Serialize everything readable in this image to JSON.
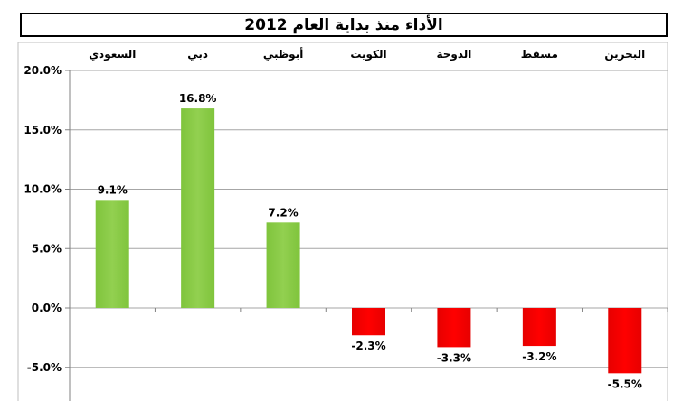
{
  "chart_data": {
    "type": "bar",
    "title": "الأداء منذ بداية العام 2012",
    "categories": [
      "السعودي",
      "دبي",
      "أبوظبي",
      "الكويت",
      "الدوحة",
      "مسقط",
      "البحرين"
    ],
    "values": [
      9.1,
      16.8,
      7.2,
      -2.3,
      -3.3,
      -3.2,
      -5.5
    ],
    "data_labels": [
      "9.1%",
      "16.8%",
      "7.2%",
      "-2.3%",
      "-3.3%",
      "-3.2%",
      "-5.5%"
    ],
    "yticks": [
      20,
      15,
      10,
      5,
      0,
      -5
    ],
    "ytick_labels": [
      "20.0%",
      "15.0%",
      "10.0%",
      "5.0%",
      "0.0%",
      "-5.0%"
    ],
    "ylim": [
      -7.5,
      20
    ],
    "xlabel": "",
    "ylabel": "",
    "grid": true,
    "legend": "none",
    "colors": {
      "positive": "#92d050",
      "negative": "#ff0000",
      "grid": "#a6a6a6"
    }
  }
}
